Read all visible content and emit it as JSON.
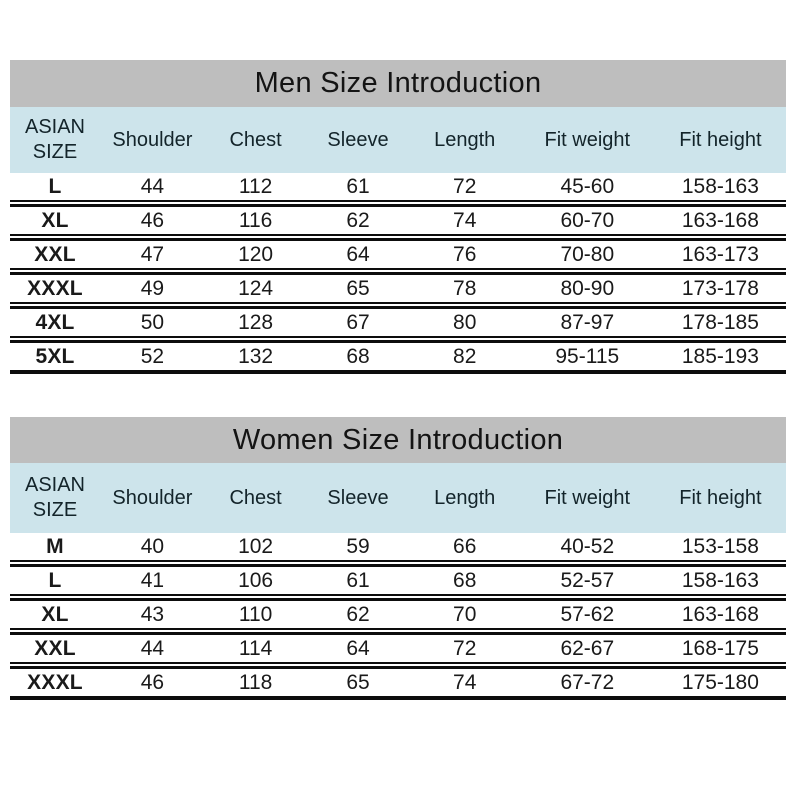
{
  "colors": {
    "page_background": "#ffffff",
    "title_bar_background": "#bebebe",
    "header_row_background": "#cde4eb",
    "separator_line": "#0d0d0d",
    "text": "#1a1a1a"
  },
  "chart_data": [
    {
      "type": "table",
      "title": "Men Size Introduction",
      "columns": [
        "ASIAN SIZE",
        "Shoulder",
        "Chest",
        "Sleeve",
        "Length",
        "Fit weight",
        "Fit height"
      ],
      "rows": [
        [
          "L",
          "44",
          "112",
          "61",
          "72",
          "45-60",
          "158-163"
        ],
        [
          "XL",
          "46",
          "116",
          "62",
          "74",
          "60-70",
          "163-168"
        ],
        [
          "XXL",
          "47",
          "120",
          "64",
          "76",
          "70-80",
          "163-173"
        ],
        [
          "XXXL",
          "49",
          "124",
          "65",
          "78",
          "80-90",
          "173-178"
        ],
        [
          "4XL",
          "50",
          "128",
          "67",
          "80",
          "87-97",
          "178-185"
        ],
        [
          "5XL",
          "52",
          "132",
          "68",
          "82",
          "95-115",
          "185-193"
        ]
      ]
    },
    {
      "type": "table",
      "title": "Women Size Introduction",
      "columns": [
        "ASIAN SIZE",
        "Shoulder",
        "Chest",
        "Sleeve",
        "Length",
        "Fit weight",
        "Fit height"
      ],
      "rows": [
        [
          "M",
          "40",
          "102",
          "59",
          "66",
          "40-52",
          "153-158"
        ],
        [
          "L",
          "41",
          "106",
          "61",
          "68",
          "52-57",
          "158-163"
        ],
        [
          "XL",
          "43",
          "110",
          "62",
          "70",
          "57-62",
          "163-168"
        ],
        [
          "XXL",
          "44",
          "114",
          "64",
          "72",
          "62-67",
          "168-175"
        ],
        [
          "XXXL",
          "46",
          "118",
          "65",
          "74",
          "67-72",
          "175-180"
        ]
      ]
    }
  ]
}
